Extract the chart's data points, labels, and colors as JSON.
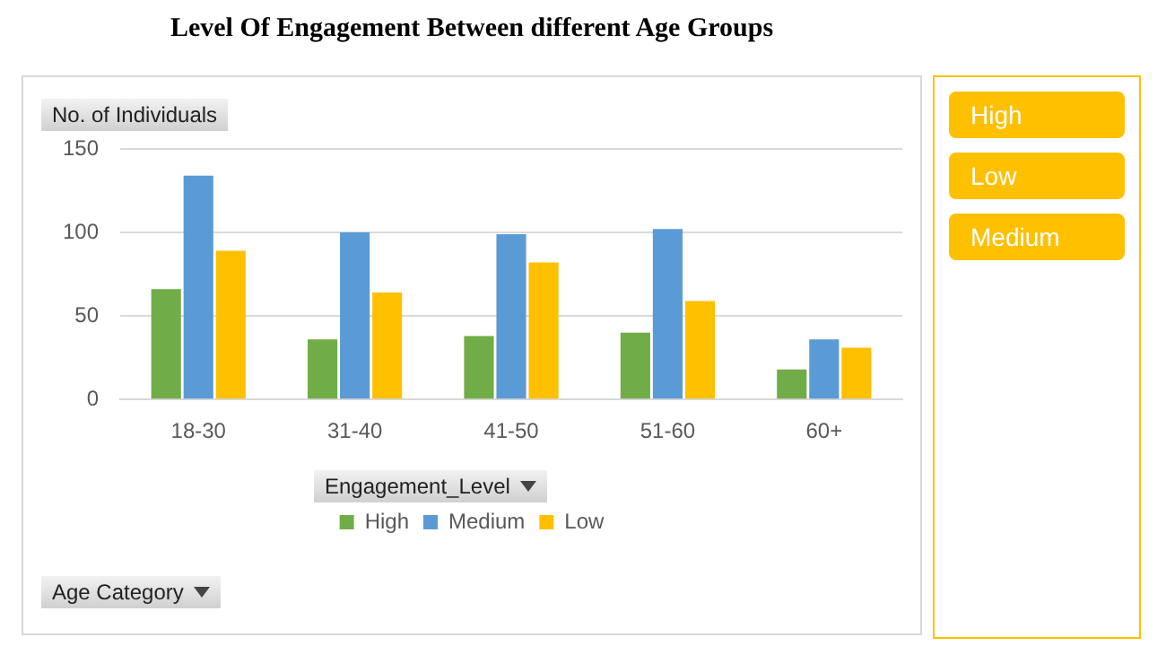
{
  "chart_data": {
    "type": "bar",
    "title": "Level Of Engagement Between different Age Groups",
    "ylabel": "No. of Individuals",
    "legend_title": "Engagement_Level",
    "annotations": [
      "Age Category",
      "High",
      "Low",
      "Medium"
    ],
    "categories": [
      "18-30",
      "31-40",
      "41-50",
      "51-60",
      "60+"
    ],
    "series": [
      {
        "name": "High",
        "color": "#70ad47",
        "values": [
          66,
          36,
          38,
          40,
          18
        ]
      },
      {
        "name": "Medium",
        "color": "#5b9bd5",
        "values": [
          134,
          100,
          99,
          102,
          36
        ]
      },
      {
        "name": "Low",
        "color": "#ffc000",
        "values": [
          89,
          64,
          82,
          59,
          31
        ]
      }
    ],
    "ylim": [
      0,
      150
    ],
    "yticks": [
      0,
      50,
      100,
      150
    ],
    "grid": "y",
    "legend": "bottom"
  }
}
